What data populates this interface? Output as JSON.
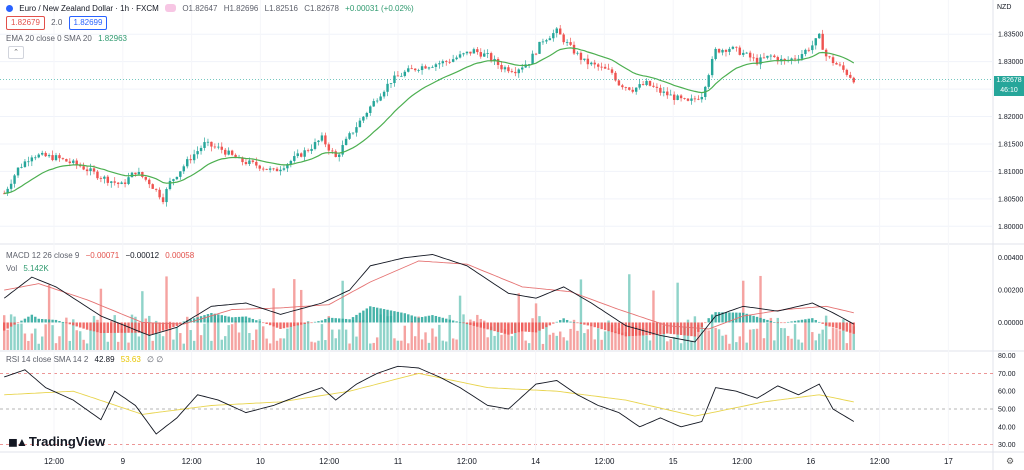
{
  "header": {
    "symbol_title": "Euro / New Zealand Dollar · 1h · FXCM",
    "ohlc": {
      "open": "O1.82647",
      "high": "H1.82696",
      "low": "L1.82516",
      "close": "C1.82678",
      "change": "+0.00031 (+0.02%)"
    },
    "bid_box": "1.82679",
    "spread": "2.0",
    "ask_box": "1.82699",
    "ema_label": "EMA 20 close 0 SMA 20",
    "ema_value": "1.82963",
    "currency": "NZD",
    "last_price": "1.82678",
    "countdown": "46:10"
  },
  "macd_legend": {
    "label": "MACD 12 26 close 9",
    "hist": "−0.00071",
    "macd": "−0.00012",
    "signal": "0.00058"
  },
  "vol_legend": {
    "label": "Vol",
    "value": "5.142K"
  },
  "rsi_legend": {
    "label": "RSI 14 close SMA 14 2",
    "rsi": "42.89",
    "sma": "53.63",
    "extra": "∅ ∅"
  },
  "branding": {
    "logo_text": "TradingView"
  },
  "colors": {
    "up": "#26a69a",
    "down": "#ef5350",
    "ema": "#4caf50",
    "macd_line": "#131722",
    "signal_line": "#e57373",
    "rsi_line": "#131722",
    "rsi_sma": "#e8d44d",
    "vol_up": "#8fd3c9",
    "vol_down": "#f5a3a1",
    "hist_up": "#26a69a",
    "hist_down": "#ef5350"
  },
  "chart_data": {
    "type": "candlestick",
    "price_axis": {
      "ticks": [
        "1.83500",
        "1.83000",
        "1.82500",
        "1.82000",
        "1.81500",
        "1.81000",
        "1.80500",
        "1.80000"
      ],
      "range": [
        1.7975,
        1.8385
      ]
    },
    "macd_axis": {
      "ticks": [
        "0.00400",
        "0.00200",
        "0.00000"
      ],
      "range": [
        -0.0017,
        0.0046
      ]
    },
    "rsi_axis": {
      "ticks": [
        "80.00",
        "70.00",
        "60.00",
        "50.00",
        "40.00",
        "30.00"
      ],
      "range": [
        27,
        82
      ],
      "bands": [
        70,
        50,
        30
      ]
    },
    "time_axis": {
      "labels": [
        "12:00",
        "9",
        "12:00",
        "10",
        "12:00",
        "11",
        "12:00",
        "14",
        "12:00",
        "15",
        "12:00",
        "16",
        "12:00",
        "17"
      ]
    },
    "anchors": [
      [
        0,
        1.806
      ],
      [
        4,
        1.8105
      ],
      [
        8,
        1.813
      ],
      [
        15,
        1.8125
      ],
      [
        22,
        1.811
      ],
      [
        28,
        1.809
      ],
      [
        34,
        1.8075
      ],
      [
        38,
        1.81
      ],
      [
        42,
        1.808
      ],
      [
        46,
        1.805
      ],
      [
        48,
        1.808
      ],
      [
        54,
        1.8125
      ],
      [
        58,
        1.815
      ],
      [
        63,
        1.814
      ],
      [
        68,
        1.812
      ],
      [
        74,
        1.811
      ],
      [
        78,
        1.81
      ],
      [
        82,
        1.8115
      ],
      [
        88,
        1.814
      ],
      [
        92,
        1.816
      ],
      [
        96,
        1.8125
      ],
      [
        100,
        1.8165
      ],
      [
        104,
        1.82
      ],
      [
        108,
        1.8235
      ],
      [
        112,
        1.8265
      ],
      [
        116,
        1.828
      ],
      [
        120,
        1.829
      ],
      [
        124,
        1.8295
      ],
      [
        128,
        1.83
      ],
      [
        132,
        1.831
      ],
      [
        136,
        1.832
      ],
      [
        140,
        1.831
      ],
      [
        144,
        1.829
      ],
      [
        148,
        1.8285
      ],
      [
        152,
        1.83
      ],
      [
        156,
        1.834
      ],
      [
        160,
        1.8355
      ],
      [
        164,
        1.8325
      ],
      [
        168,
        1.83
      ],
      [
        172,
        1.829
      ],
      [
        176,
        1.828
      ],
      [
        178,
        1.826
      ],
      [
        182,
        1.825
      ],
      [
        186,
        1.826
      ],
      [
        190,
        1.8245
      ],
      [
        194,
        1.8235
      ],
      [
        198,
        1.8225
      ],
      [
        202,
        1.824
      ],
      [
        206,
        1.832
      ],
      [
        210,
        1.8325
      ],
      [
        214,
        1.8315
      ],
      [
        218,
        1.83
      ],
      [
        222,
        1.831
      ],
      [
        226,
        1.83
      ],
      [
        230,
        1.831
      ],
      [
        234,
        1.833
      ],
      [
        236,
        1.8345
      ],
      [
        238,
        1.831
      ],
      [
        242,
        1.829
      ],
      [
        246,
        1.8268
      ]
    ],
    "macd_series": [
      [
        0,
        0.0015
      ],
      [
        8,
        0.0028
      ],
      [
        15,
        0.0022
      ],
      [
        28,
        0.0004
      ],
      [
        42,
        -0.0008
      ],
      [
        50,
        -0.0003
      ],
      [
        60,
        0.001
      ],
      [
        70,
        0.0012
      ],
      [
        80,
        0.0005
      ],
      [
        92,
        0.0012
      ],
      [
        100,
        0.002
      ],
      [
        106,
        0.0035
      ],
      [
        116,
        0.004
      ],
      [
        124,
        0.0042
      ],
      [
        134,
        0.0035
      ],
      [
        146,
        0.0018
      ],
      [
        154,
        0.0015
      ],
      [
        162,
        0.0022
      ],
      [
        170,
        0.0012
      ],
      [
        180,
        -0.0002
      ],
      [
        190,
        -0.0008
      ],
      [
        200,
        -0.0012
      ],
      [
        206,
        0.0004
      ],
      [
        214,
        0.001
      ],
      [
        224,
        0.0007
      ],
      [
        234,
        0.0012
      ],
      [
        240,
        0.0006
      ],
      [
        246,
        -0.0001
      ]
    ],
    "signal_series": [
      [
        0,
        0.002
      ],
      [
        10,
        0.0024
      ],
      [
        24,
        0.0014
      ],
      [
        40,
        0.0
      ],
      [
        52,
        -0.0001
      ],
      [
        66,
        0.0008
      ],
      [
        80,
        0.0009
      ],
      [
        94,
        0.0011
      ],
      [
        106,
        0.0025
      ],
      [
        120,
        0.0038
      ],
      [
        134,
        0.0036
      ],
      [
        150,
        0.0022
      ],
      [
        164,
        0.0019
      ],
      [
        178,
        0.0008
      ],
      [
        192,
        -0.0002
      ],
      [
        204,
        -0.0004
      ],
      [
        214,
        0.0004
      ],
      [
        226,
        0.0008
      ],
      [
        238,
        0.001
      ],
      [
        246,
        0.0006
      ]
    ],
    "rsi_series": [
      [
        0,
        68
      ],
      [
        6,
        72
      ],
      [
        12,
        62
      ],
      [
        20,
        55
      ],
      [
        28,
        44
      ],
      [
        32,
        60
      ],
      [
        38,
        52
      ],
      [
        44,
        36
      ],
      [
        50,
        45
      ],
      [
        56,
        58
      ],
      [
        62,
        55
      ],
      [
        70,
        48
      ],
      [
        78,
        52
      ],
      [
        86,
        58
      ],
      [
        92,
        62
      ],
      [
        96,
        55
      ],
      [
        102,
        64
      ],
      [
        108,
        70
      ],
      [
        114,
        74
      ],
      [
        120,
        73
      ],
      [
        126,
        68
      ],
      [
        132,
        62
      ],
      [
        140,
        52
      ],
      [
        146,
        50
      ],
      [
        154,
        64
      ],
      [
        160,
        66
      ],
      [
        166,
        58
      ],
      [
        172,
        52
      ],
      [
        178,
        48
      ],
      [
        184,
        40
      ],
      [
        190,
        45
      ],
      [
        196,
        40
      ],
      [
        202,
        43
      ],
      [
        206,
        62
      ],
      [
        212,
        60
      ],
      [
        218,
        56
      ],
      [
        224,
        63
      ],
      [
        230,
        58
      ],
      [
        236,
        64
      ],
      [
        240,
        50
      ],
      [
        246,
        43
      ]
    ],
    "rsi_sma_series": [
      [
        0,
        58
      ],
      [
        20,
        60
      ],
      [
        40,
        47
      ],
      [
        60,
        52
      ],
      [
        80,
        54
      ],
      [
        100,
        60
      ],
      [
        120,
        70
      ],
      [
        140,
        62
      ],
      [
        160,
        60
      ],
      [
        180,
        55
      ],
      [
        200,
        46
      ],
      [
        220,
        54
      ],
      [
        236,
        58
      ],
      [
        246,
        54
      ]
    ],
    "bar_count": 247
  }
}
